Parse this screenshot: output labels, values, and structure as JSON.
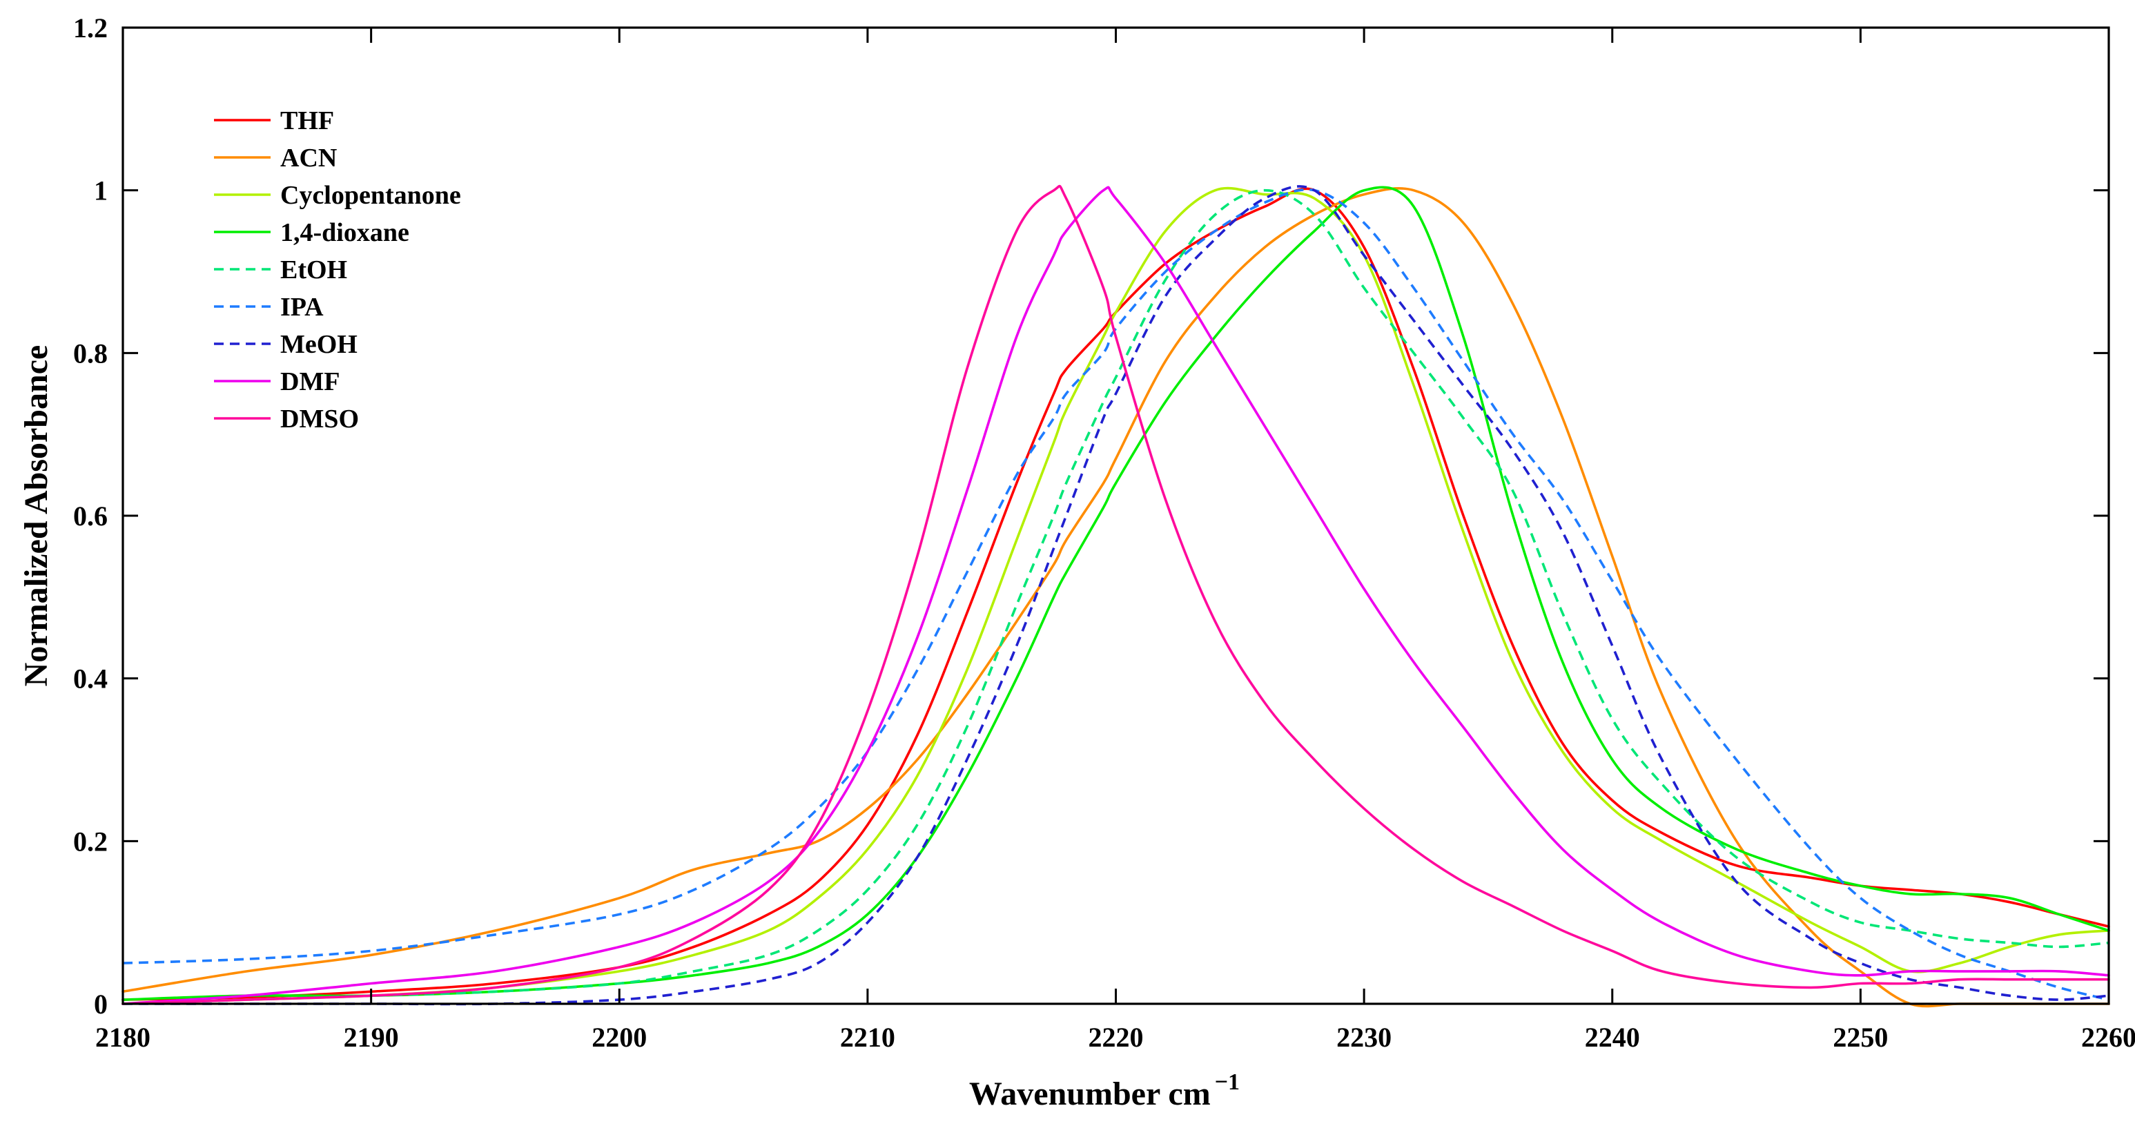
{
  "chart_data": {
    "type": "line",
    "title": "",
    "xlabel": "Wavenumber cm",
    "xlabel_sup": "−1",
    "ylabel": "Normalized Absorbance",
    "xlim": [
      2180,
      2260
    ],
    "ylim": [
      0,
      1.2
    ],
    "xticks": [
      2180,
      2190,
      2200,
      2210,
      2220,
      2230,
      2240,
      2250,
      2260
    ],
    "xtick_labels": [
      "2180",
      "2190",
      "2200",
      "2210",
      "2220",
      "2230",
      "2240",
      "2250",
      "2260"
    ],
    "yticks": [
      0,
      0.2,
      0.4,
      0.6,
      0.8,
      1.0,
      1.2
    ],
    "ytick_labels": [
      "0",
      "0.2",
      "0.4",
      "0.6",
      "0.8",
      "1",
      "1.2"
    ],
    "grid": false,
    "legend_position": "top-left",
    "x": [
      2180,
      2185,
      2190,
      2195,
      2200,
      2203,
      2206,
      2208,
      2210,
      2212,
      2214,
      2216,
      2217.5,
      2218,
      2219.5,
      2220,
      2222,
      2224,
      2226,
      2228,
      2230,
      2232,
      2234,
      2236,
      2238,
      2240,
      2242,
      2245,
      2248,
      2250,
      2252,
      2254,
      2256,
      2258,
      2260
    ],
    "series": [
      {
        "name": "THF",
        "color": "#ff0000",
        "dash": "solid",
        "values": [
          0.005,
          0.008,
          0.015,
          0.025,
          0.045,
          0.07,
          0.11,
          0.15,
          0.22,
          0.33,
          0.48,
          0.64,
          0.75,
          0.78,
          0.83,
          0.85,
          0.91,
          0.95,
          0.98,
          1.0,
          0.93,
          0.78,
          0.6,
          0.44,
          0.32,
          0.25,
          0.21,
          0.17,
          0.155,
          0.145,
          0.14,
          0.135,
          0.125,
          0.11,
          0.095
        ]
      },
      {
        "name": "ACN",
        "color": "#ff8c00",
        "dash": "solid",
        "values": [
          0.015,
          0.04,
          0.06,
          0.09,
          0.13,
          0.165,
          0.185,
          0.2,
          0.24,
          0.3,
          0.38,
          0.47,
          0.54,
          0.57,
          0.64,
          0.67,
          0.79,
          0.87,
          0.93,
          0.97,
          0.995,
          1.0,
          0.96,
          0.86,
          0.72,
          0.55,
          0.38,
          0.2,
          0.09,
          0.04,
          0.0,
          0.0,
          0.0,
          0.0,
          0.0
        ]
      },
      {
        "name": "Cyclopentanone",
        "color": "#b3f000",
        "dash": "solid",
        "values": [
          0.0,
          0.005,
          0.01,
          0.02,
          0.04,
          0.06,
          0.09,
          0.13,
          0.19,
          0.28,
          0.41,
          0.57,
          0.69,
          0.73,
          0.82,
          0.85,
          0.95,
          1.0,
          0.995,
          0.99,
          0.92,
          0.76,
          0.58,
          0.42,
          0.31,
          0.24,
          0.2,
          0.15,
          0.1,
          0.07,
          0.04,
          0.05,
          0.07,
          0.085,
          0.09
        ]
      },
      {
        "name": "1,4-dioxane",
        "color": "#00ee00",
        "dash": "solid",
        "values": [
          0.005,
          0.01,
          0.01,
          0.015,
          0.025,
          0.035,
          0.05,
          0.07,
          0.11,
          0.18,
          0.28,
          0.4,
          0.5,
          0.53,
          0.61,
          0.64,
          0.74,
          0.82,
          0.89,
          0.95,
          1.0,
          0.98,
          0.82,
          0.6,
          0.42,
          0.3,
          0.24,
          0.19,
          0.16,
          0.145,
          0.135,
          0.135,
          0.13,
          0.11,
          0.09
        ]
      },
      {
        "name": "EtOH",
        "color": "#00e676",
        "dash": "dashed",
        "values": [
          0.0,
          0.005,
          0.01,
          0.015,
          0.025,
          0.04,
          0.06,
          0.09,
          0.14,
          0.22,
          0.34,
          0.49,
          0.6,
          0.64,
          0.74,
          0.77,
          0.89,
          0.97,
          1.0,
          0.97,
          0.88,
          0.8,
          0.72,
          0.63,
          0.48,
          0.35,
          0.27,
          0.18,
          0.125,
          0.1,
          0.09,
          0.08,
          0.075,
          0.07,
          0.075
        ]
      },
      {
        "name": "IPA",
        "color": "#1e7cff",
        "dash": "dashed",
        "values": [
          0.05,
          0.055,
          0.065,
          0.085,
          0.11,
          0.14,
          0.19,
          0.24,
          0.31,
          0.41,
          0.53,
          0.65,
          0.72,
          0.75,
          0.8,
          0.83,
          0.9,
          0.95,
          0.985,
          1.0,
          0.96,
          0.88,
          0.79,
          0.7,
          0.62,
          0.52,
          0.42,
          0.3,
          0.19,
          0.13,
          0.09,
          0.06,
          0.04,
          0.02,
          0.005
        ]
      },
      {
        "name": "MeOH",
        "color": "#2020d0",
        "dash": "dashed",
        "values": [
          0.0,
          0.0,
          0.0,
          0.0,
          0.005,
          0.015,
          0.03,
          0.05,
          0.1,
          0.18,
          0.3,
          0.44,
          0.56,
          0.6,
          0.72,
          0.75,
          0.87,
          0.94,
          0.99,
          1.0,
          0.92,
          0.84,
          0.76,
          0.68,
          0.58,
          0.44,
          0.3,
          0.15,
          0.08,
          0.05,
          0.03,
          0.02,
          0.01,
          0.005,
          0.01
        ]
      },
      {
        "name": "DMF",
        "color": "#ee00ee",
        "dash": "solid",
        "values": [
          0.0,
          0.01,
          0.025,
          0.04,
          0.07,
          0.1,
          0.15,
          0.21,
          0.31,
          0.45,
          0.63,
          0.82,
          0.92,
          0.95,
          1.0,
          0.99,
          0.91,
          0.81,
          0.71,
          0.61,
          0.51,
          0.42,
          0.34,
          0.26,
          0.19,
          0.14,
          0.1,
          0.06,
          0.04,
          0.035,
          0.04,
          0.04,
          0.04,
          0.04,
          0.035
        ]
      },
      {
        "name": "DMSO",
        "color": "#ff0a9c",
        "dash": "solid",
        "values": [
          0.0,
          0.005,
          0.01,
          0.02,
          0.045,
          0.08,
          0.14,
          0.22,
          0.36,
          0.55,
          0.78,
          0.95,
          1.0,
          0.99,
          0.88,
          0.82,
          0.62,
          0.47,
          0.37,
          0.3,
          0.24,
          0.19,
          0.15,
          0.12,
          0.09,
          0.065,
          0.04,
          0.025,
          0.02,
          0.025,
          0.025,
          0.03,
          0.03,
          0.03,
          0.03
        ]
      }
    ]
  }
}
